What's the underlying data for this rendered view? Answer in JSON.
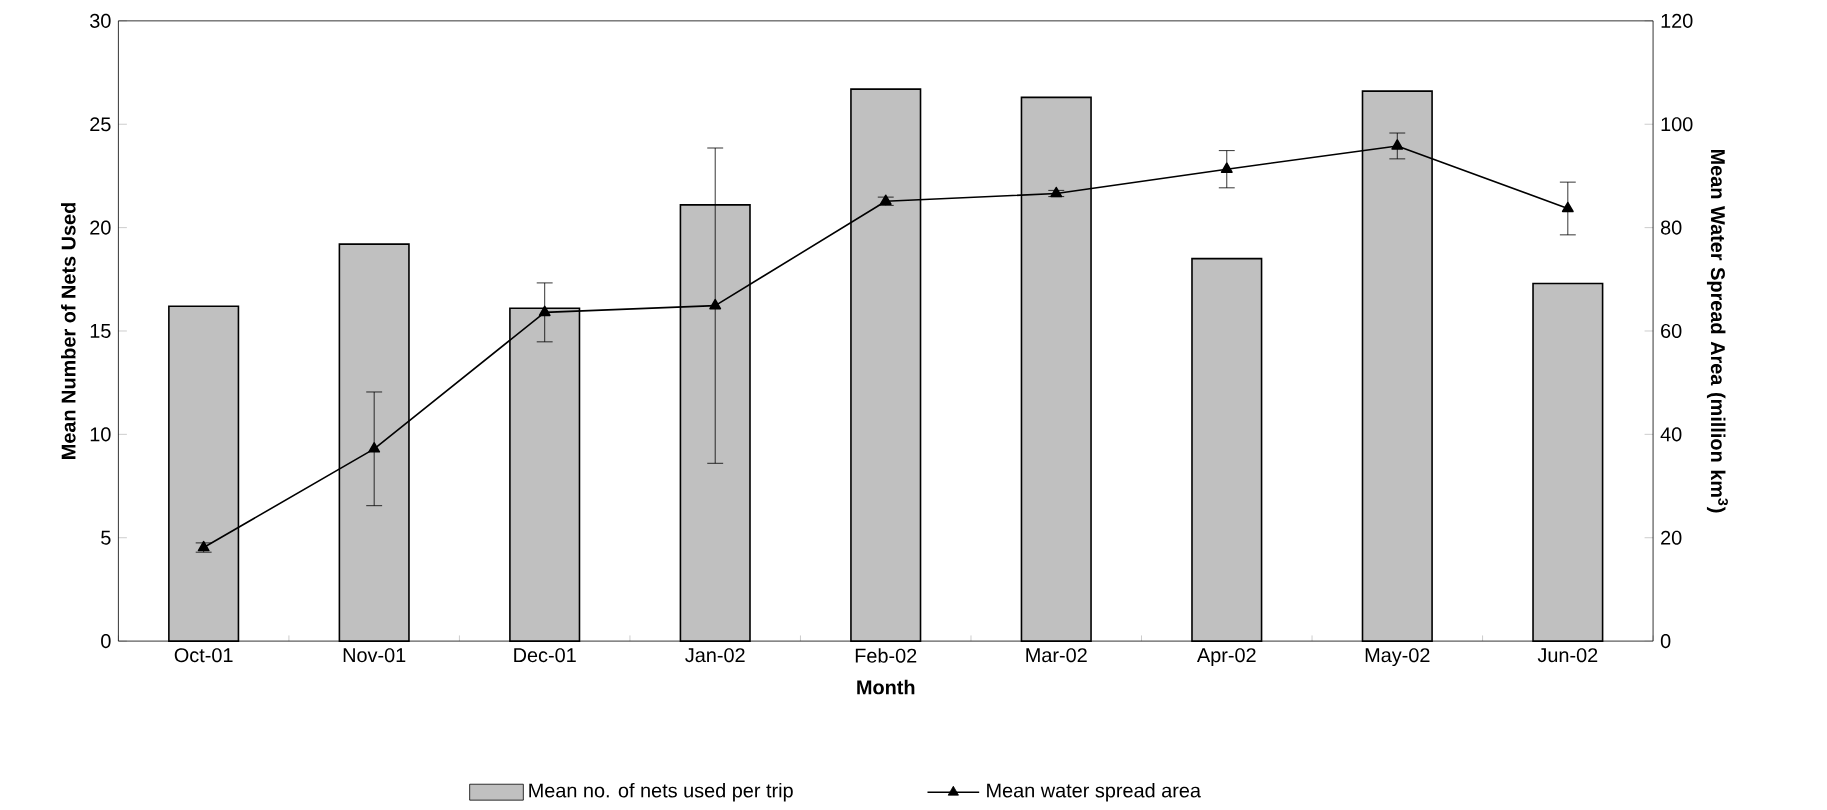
{
  "chart_data": {
    "type": "bar",
    "xlabel": "Month",
    "ylabel": "Mean Number of Nets Used",
    "y2label": "Mean Water Spread Area (million km$^{3}$)",
    "categories": [
      "Oct-01",
      "Nov-01",
      "Dec-01",
      "Jan-02",
      "Feb-02",
      "Mar-02",
      "Apr-02",
      "May-02",
      "Jun-02"
    ],
    "series": [
      {
        "name": "Mean no. of nets used per trip",
        "color": "#c0c0c0",
        "values": [
          16.2,
          19.2,
          16.1,
          21.1,
          26.7,
          26.3,
          18.5,
          26.6,
          17.3
        ]
      },
      {
        "type": "line",
        "axis": "y2",
        "name": "Mean water spread area",
        "color": "#000000",
        "marker": "triangle",
        "values": [
          18.1,
          37.2,
          63.6,
          64.9,
          85.1,
          86.6,
          91.3,
          95.8,
          83.7
        ],
        "errors": [
          0.9,
          11,
          5.7,
          30.5,
          0.8,
          0.6,
          3.6,
          2.5,
          5.1
        ]
      }
    ],
    "ylim": [
      0,
      30
    ],
    "yticks": [
      0,
      5,
      10,
      15,
      20,
      25,
      30
    ],
    "y2lim": [
      0,
      120
    ],
    "y2ticks": [
      0,
      20,
      40,
      60,
      80,
      100,
      120
    ],
    "legend": "bottom",
    "grid": false
  }
}
